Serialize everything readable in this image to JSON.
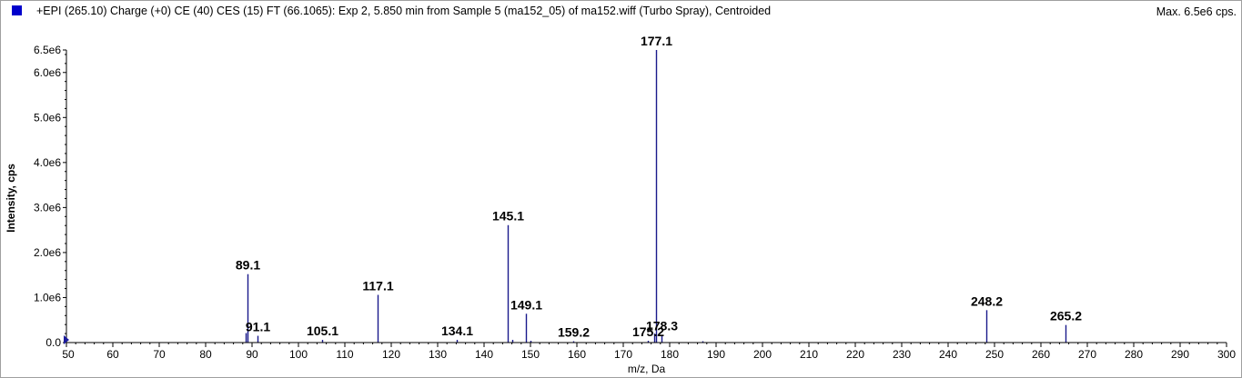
{
  "header": {
    "title": "+EPI (265.10) Charge (+0) CE (40) CES (15) FT (66.1065): Exp 2, 5.850 min from Sample 5 (ma152_05) of ma152.wiff (Turbo Spray), Centroided",
    "max_label": "Max. 6.5e6 cps."
  },
  "colors": {
    "peak": "#1a1a8c",
    "swatch": "#0000cc",
    "axis": "#000000"
  },
  "chart_data": {
    "type": "bar",
    "xlabel": "m/z, Da",
    "ylabel": "Intensity, cps",
    "xlim": [
      50,
      300
    ],
    "ylim": [
      0,
      6500000
    ],
    "x_ticks": [
      50,
      60,
      70,
      80,
      90,
      100,
      110,
      120,
      130,
      140,
      150,
      160,
      170,
      180,
      190,
      200,
      210,
      220,
      230,
      240,
      250,
      260,
      270,
      280,
      290,
      300
    ],
    "y_ticks": [
      {
        "value": 0,
        "label": "0.0"
      },
      {
        "value": 1000000,
        "label": "1.0e6"
      },
      {
        "value": 2000000,
        "label": "2.0e6"
      },
      {
        "value": 3000000,
        "label": "3.0e6"
      },
      {
        "value": 4000000,
        "label": "4.0e6"
      },
      {
        "value": 5000000,
        "label": "5.0e6"
      },
      {
        "value": 6000000,
        "label": "6.0e6"
      },
      {
        "value": 6500000,
        "label": "6.5e6"
      }
    ],
    "peaks": [
      {
        "mz": 88.7,
        "intensity": 210000
      },
      {
        "mz": 89.1,
        "intensity": 1520000,
        "label": "89.1"
      },
      {
        "mz": 91.1,
        "intensity": 150000,
        "label": "91.1"
      },
      {
        "mz": 105.1,
        "intensity": 60000,
        "label": "105.1"
      },
      {
        "mz": 117.1,
        "intensity": 1060000,
        "label": "117.1"
      },
      {
        "mz": 134.1,
        "intensity": 60000,
        "label": "134.1"
      },
      {
        "mz": 145.1,
        "intensity": 2610000,
        "label": "145.1"
      },
      {
        "mz": 146.1,
        "intensity": 60000
      },
      {
        "mz": 149.1,
        "intensity": 640000,
        "label": "149.1"
      },
      {
        "mz": 150.0,
        "intensity": 40000
      },
      {
        "mz": 159.2,
        "intensity": 30000,
        "label": "159.2"
      },
      {
        "mz": 175.2,
        "intensity": 40000,
        "label": "175.2"
      },
      {
        "mz": 176.6,
        "intensity": 200000
      },
      {
        "mz": 177.1,
        "intensity": 6500000,
        "label": "177.1"
      },
      {
        "mz": 178.3,
        "intensity": 170000,
        "label": "178.3"
      },
      {
        "mz": 187.0,
        "intensity": 30000
      },
      {
        "mz": 248.2,
        "intensity": 720000,
        "label": "248.2"
      },
      {
        "mz": 265.2,
        "intensity": 390000,
        "label": "265.2"
      }
    ]
  }
}
